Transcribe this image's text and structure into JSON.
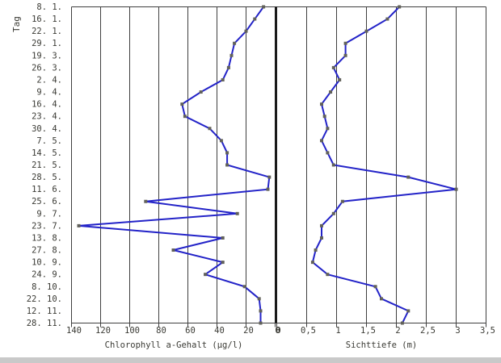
{
  "chart_data": {
    "type": "line",
    "title": "",
    "ylabel": "Tag",
    "orientation": "vertical-category-axis",
    "grid": true,
    "legend": false,
    "background": "#ffffff",
    "line_color": "#2323c8",
    "marker_color": "#61615a",
    "grid_color": "#3f3f3f",
    "text_color": "#3a3a34",
    "categories": [
      "8. 1.",
      "16. 1.",
      "22. 1.",
      "29. 1.",
      "19. 3.",
      "26. 3.",
      "2. 4.",
      "9. 4.",
      "16. 4.",
      "23. 4.",
      "30. 4.",
      "7. 5.",
      "14. 5.",
      "21. 5.",
      "28. 5.",
      "11. 6.",
      "25. 6.",
      "9. 7.",
      "23. 7.",
      "13. 8.",
      "27. 8.",
      "10. 9.",
      "24. 9.",
      "8. 10.",
      "22. 10.",
      "12. 11.",
      "28. 11."
    ],
    "panels": [
      {
        "name": "chlorophyll",
        "xlabel": "Chlorophyll a-Gehalt (µg/l)",
        "xlim": [
          140,
          0
        ],
        "axis_reversed": true,
        "ticks": [
          140,
          120,
          100,
          80,
          60,
          40,
          20,
          0
        ],
        "tick_labels": [
          "140",
          "120",
          "100",
          "80",
          "60",
          "40",
          "20",
          "0"
        ],
        "values": [
          8,
          14,
          20,
          28,
          30,
          32,
          36,
          51,
          64,
          62,
          45,
          37,
          33,
          33,
          4,
          5,
          89,
          26,
          135,
          36,
          70,
          36,
          48,
          21,
          11,
          10,
          10
        ]
      },
      {
        "name": "sichttiefe",
        "xlabel": "Sichttiefe (m)",
        "xlim": [
          0,
          3.5
        ],
        "axis_reversed": false,
        "ticks": [
          0,
          0.5,
          1,
          1.5,
          2,
          2.5,
          3,
          3.5
        ],
        "tick_labels": [
          "0",
          "0,5",
          "1",
          "1,5",
          "2",
          "2,5",
          "3",
          "3,5"
        ],
        "values": [
          2.05,
          1.85,
          1.5,
          1.15,
          1.15,
          0.95,
          1.05,
          0.9,
          0.75,
          0.8,
          0.85,
          0.75,
          0.85,
          0.95,
          2.2,
          3.0,
          1.1,
          0.95,
          0.75,
          0.75,
          0.65,
          0.6,
          0.85,
          1.65,
          1.75,
          2.2,
          2.1
        ]
      }
    ]
  }
}
